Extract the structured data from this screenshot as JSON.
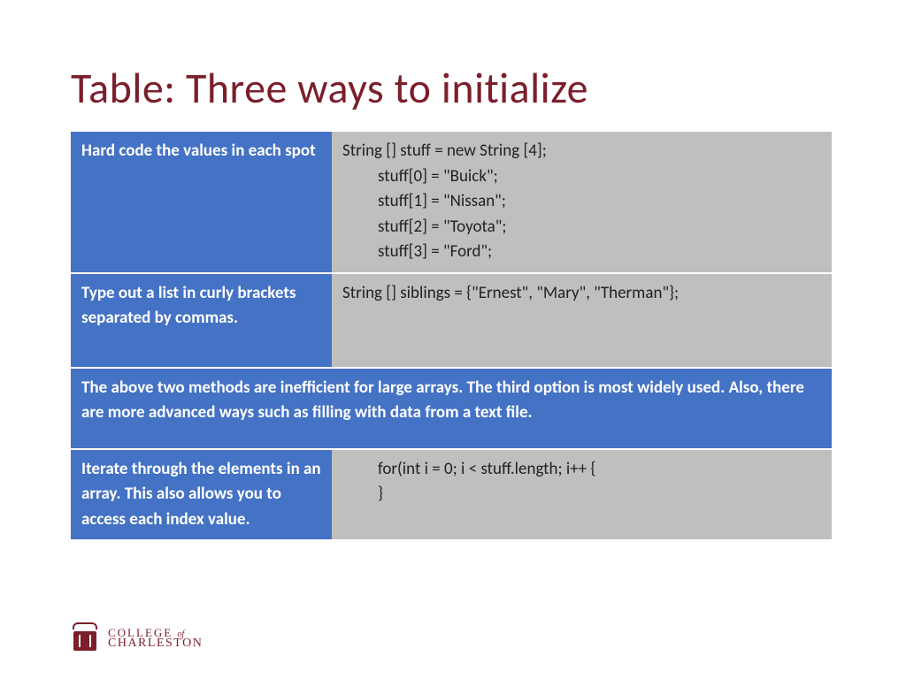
{
  "title": "Table: Three ways to initialize",
  "rows": {
    "r1": {
      "label": "Hard code the values in each spot",
      "code": [
        "String [] stuff = new String [4];",
        "stuff[0] = \"Buick\";",
        "stuff[1] = \"Nissan\";",
        "stuff[2] = \"Toyota\";",
        "stuff[3] = \"Ford\";"
      ]
    },
    "r2": {
      "label": "Type out a list in curly brackets separated by commas.",
      "code": "String [] siblings = {\"Ernest\", \"Mary\", \"Therman\"};"
    },
    "r3": {
      "text": "The above two methods are inefficient for large arrays.  The third option is most widely used. Also, there are more advanced ways such as filling with data from a text file."
    },
    "r4": {
      "label": "Iterate through the elements in an array. This also allows you to access each  index value.",
      "code": [
        "for(int i = 0; i < stuff.length; i++ {",
        "}"
      ]
    }
  },
  "footer": {
    "line1_a": "COLLEGE",
    "line1_b": "of",
    "line2": "CHARLESTON"
  },
  "colors": {
    "title": "#7a1f2b",
    "blue": "#4472c4",
    "gray": "#bfbfbf",
    "white": "#ffffff"
  },
  "fontsizes": {
    "title": 48,
    "body": 19,
    "footer_small": 13
  }
}
